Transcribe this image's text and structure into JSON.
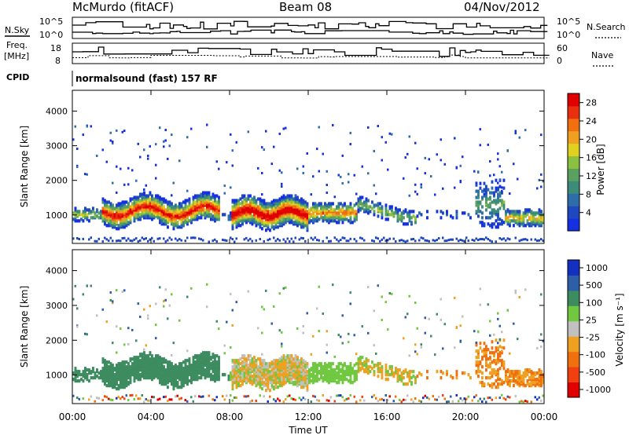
{
  "header": {
    "station": "McMurdo (fitACF)",
    "beam": "Beam 08",
    "date": "04/Nov/2012",
    "cpid_label": "CPID",
    "cpid_value": "normalsound (fast) 157 RF"
  },
  "noise_panel": {
    "left_label": "N.Sky",
    "right_label": "N.Search",
    "left_ticks": [
      "10^5",
      "10^0"
    ],
    "right_ticks": [
      "10^5",
      "10^0"
    ]
  },
  "freq_panel": {
    "left_label_1": "Freq.",
    "left_label_2": "[MHz]",
    "right_label": "Nave",
    "left_ticks": [
      "18",
      "8"
    ],
    "right_ticks": [
      "60",
      "0"
    ]
  },
  "colors": {
    "power_scale": [
      "#1530e0",
      "#1f47c0",
      "#2e6ea8",
      "#3c8c7a",
      "#5aa060",
      "#8cc040",
      "#e0d020",
      "#f0a020",
      "#f07010",
      "#e83010",
      "#e00000"
    ],
    "velocity_scale": [
      "#e00000",
      "#f04010",
      "#f07010",
      "#f0a020",
      "#c0c0c0",
      "#70c840",
      "#3c8c60",
      "#2e5ea8",
      "#1530c0"
    ]
  },
  "chart_data": [
    {
      "type": "heatmap",
      "name": "power",
      "ylabel": "Slant Range [km]",
      "xlabel": "",
      "ylim": [
        180,
        4600
      ],
      "yticks": [
        "1000",
        "2000",
        "3000",
        "4000"
      ],
      "x_ticks": [
        "00:00",
        "04:00",
        "08:00",
        "12:00",
        "16:00",
        "20:00",
        "00:00"
      ],
      "colorbar_label": "Power [dB]",
      "colorbar_ticks": [
        "4",
        "8",
        "12",
        "16",
        "20",
        "24",
        "28"
      ],
      "colorbar_range": [
        0,
        30
      ]
    },
    {
      "type": "heatmap",
      "name": "velocity",
      "ylabel": "Slant Range [km]",
      "xlabel": "Time UT",
      "ylim": [
        180,
        4600
      ],
      "yticks": [
        "1000",
        "2000",
        "3000",
        "4000"
      ],
      "x_ticks": [
        "00:00",
        "04:00",
        "08:00",
        "12:00",
        "16:00",
        "20:00",
        "00:00"
      ],
      "colorbar_label": "Velocity [m s⁻¹]",
      "colorbar_ticks": [
        "1000",
        "500",
        "100",
        "25",
        "-25",
        "-100",
        "-500",
        "-1000"
      ]
    }
  ]
}
